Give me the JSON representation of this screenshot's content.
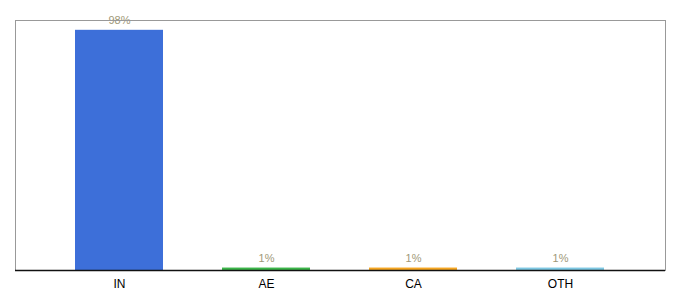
{
  "chart_data": {
    "type": "bar",
    "categories": [
      "IN",
      "AE",
      "CA",
      "OTH"
    ],
    "values": [
      98,
      1,
      1,
      1
    ],
    "value_labels": [
      "98%",
      "1%",
      "1%",
      "1%"
    ],
    "colors": [
      "#3d6fd9",
      "#3cb54a",
      "#f5a623",
      "#7ec8e3"
    ],
    "ylim": [
      0,
      102
    ],
    "data_labels": true,
    "tick_labels": "x",
    "grid": false
  }
}
